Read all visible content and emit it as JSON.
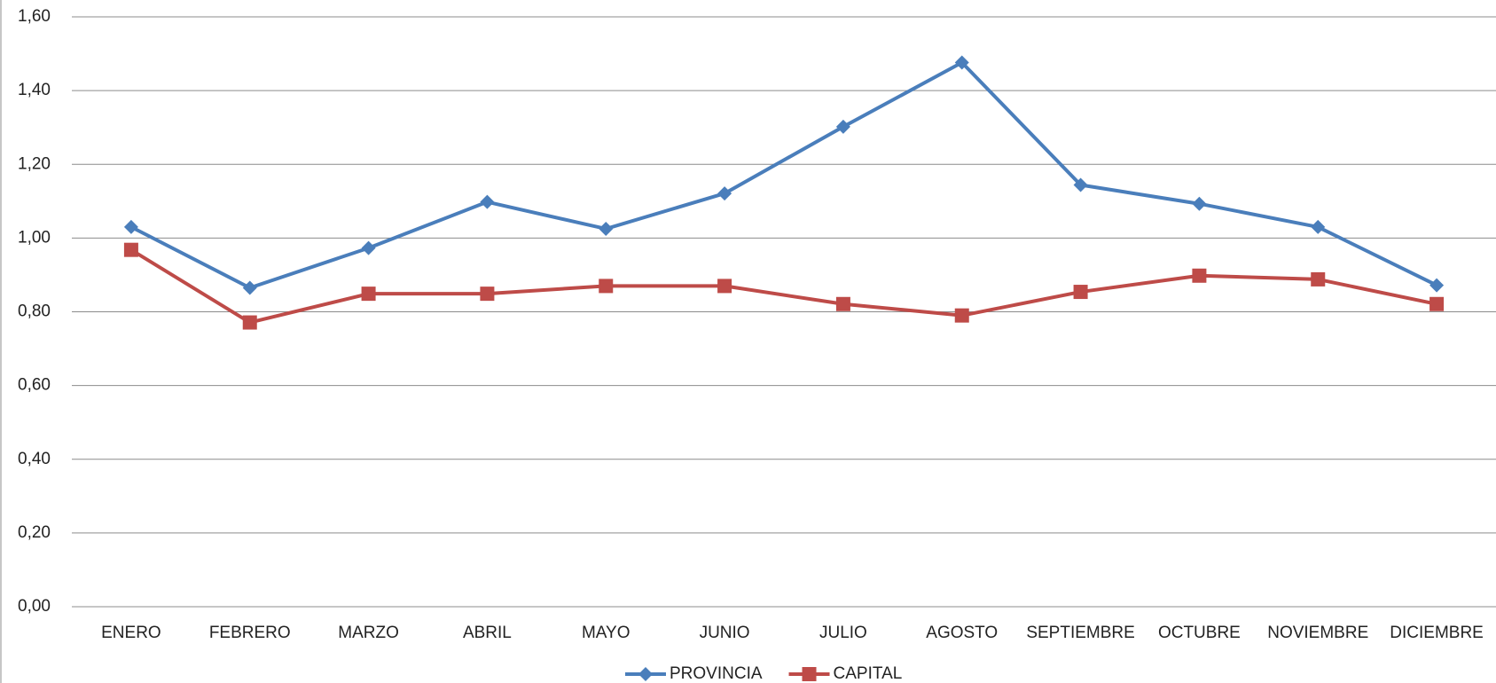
{
  "chart_data": {
    "type": "line",
    "categories": [
      "ENERO",
      "FEBRERO",
      "MARZO",
      "ABRIL",
      "MAYO",
      "JUNIO",
      "JULIO",
      "AGOSTO",
      "SEPTIEMBRE",
      "OCTUBRE",
      "NOVIEMBRE",
      "DICIEMBRE"
    ],
    "series": [
      {
        "name": "PROVINCIA",
        "color": "#4a7ebb",
        "marker": "diamond",
        "values": [
          1.03,
          0.865,
          0.973,
          1.098,
          1.025,
          1.121,
          1.302,
          1.476,
          1.144,
          1.093,
          1.03,
          0.872
        ]
      },
      {
        "name": "CAPITAL",
        "color": "#be4b48",
        "marker": "square",
        "values": [
          0.968,
          0.771,
          0.849,
          0.849,
          0.87,
          0.87,
          0.821,
          0.79,
          0.854,
          0.898,
          0.888,
          0.821
        ]
      }
    ],
    "ylim": [
      0,
      1.6
    ],
    "yticks": [
      {
        "value": 0,
        "label": "0,00"
      },
      {
        "value": 0.2,
        "label": "0,20"
      },
      {
        "value": 0.4,
        "label": "0,40"
      },
      {
        "value": 0.6,
        "label": "0,60"
      },
      {
        "value": 0.8,
        "label": "0,80"
      },
      {
        "value": 1.0,
        "label": "1,00"
      },
      {
        "value": 1.2,
        "label": "1,20"
      },
      {
        "value": 1.4,
        "label": "1,40"
      },
      {
        "value": 1.6,
        "label": "1,60"
      }
    ],
    "grid": true,
    "legend": "bottom"
  }
}
